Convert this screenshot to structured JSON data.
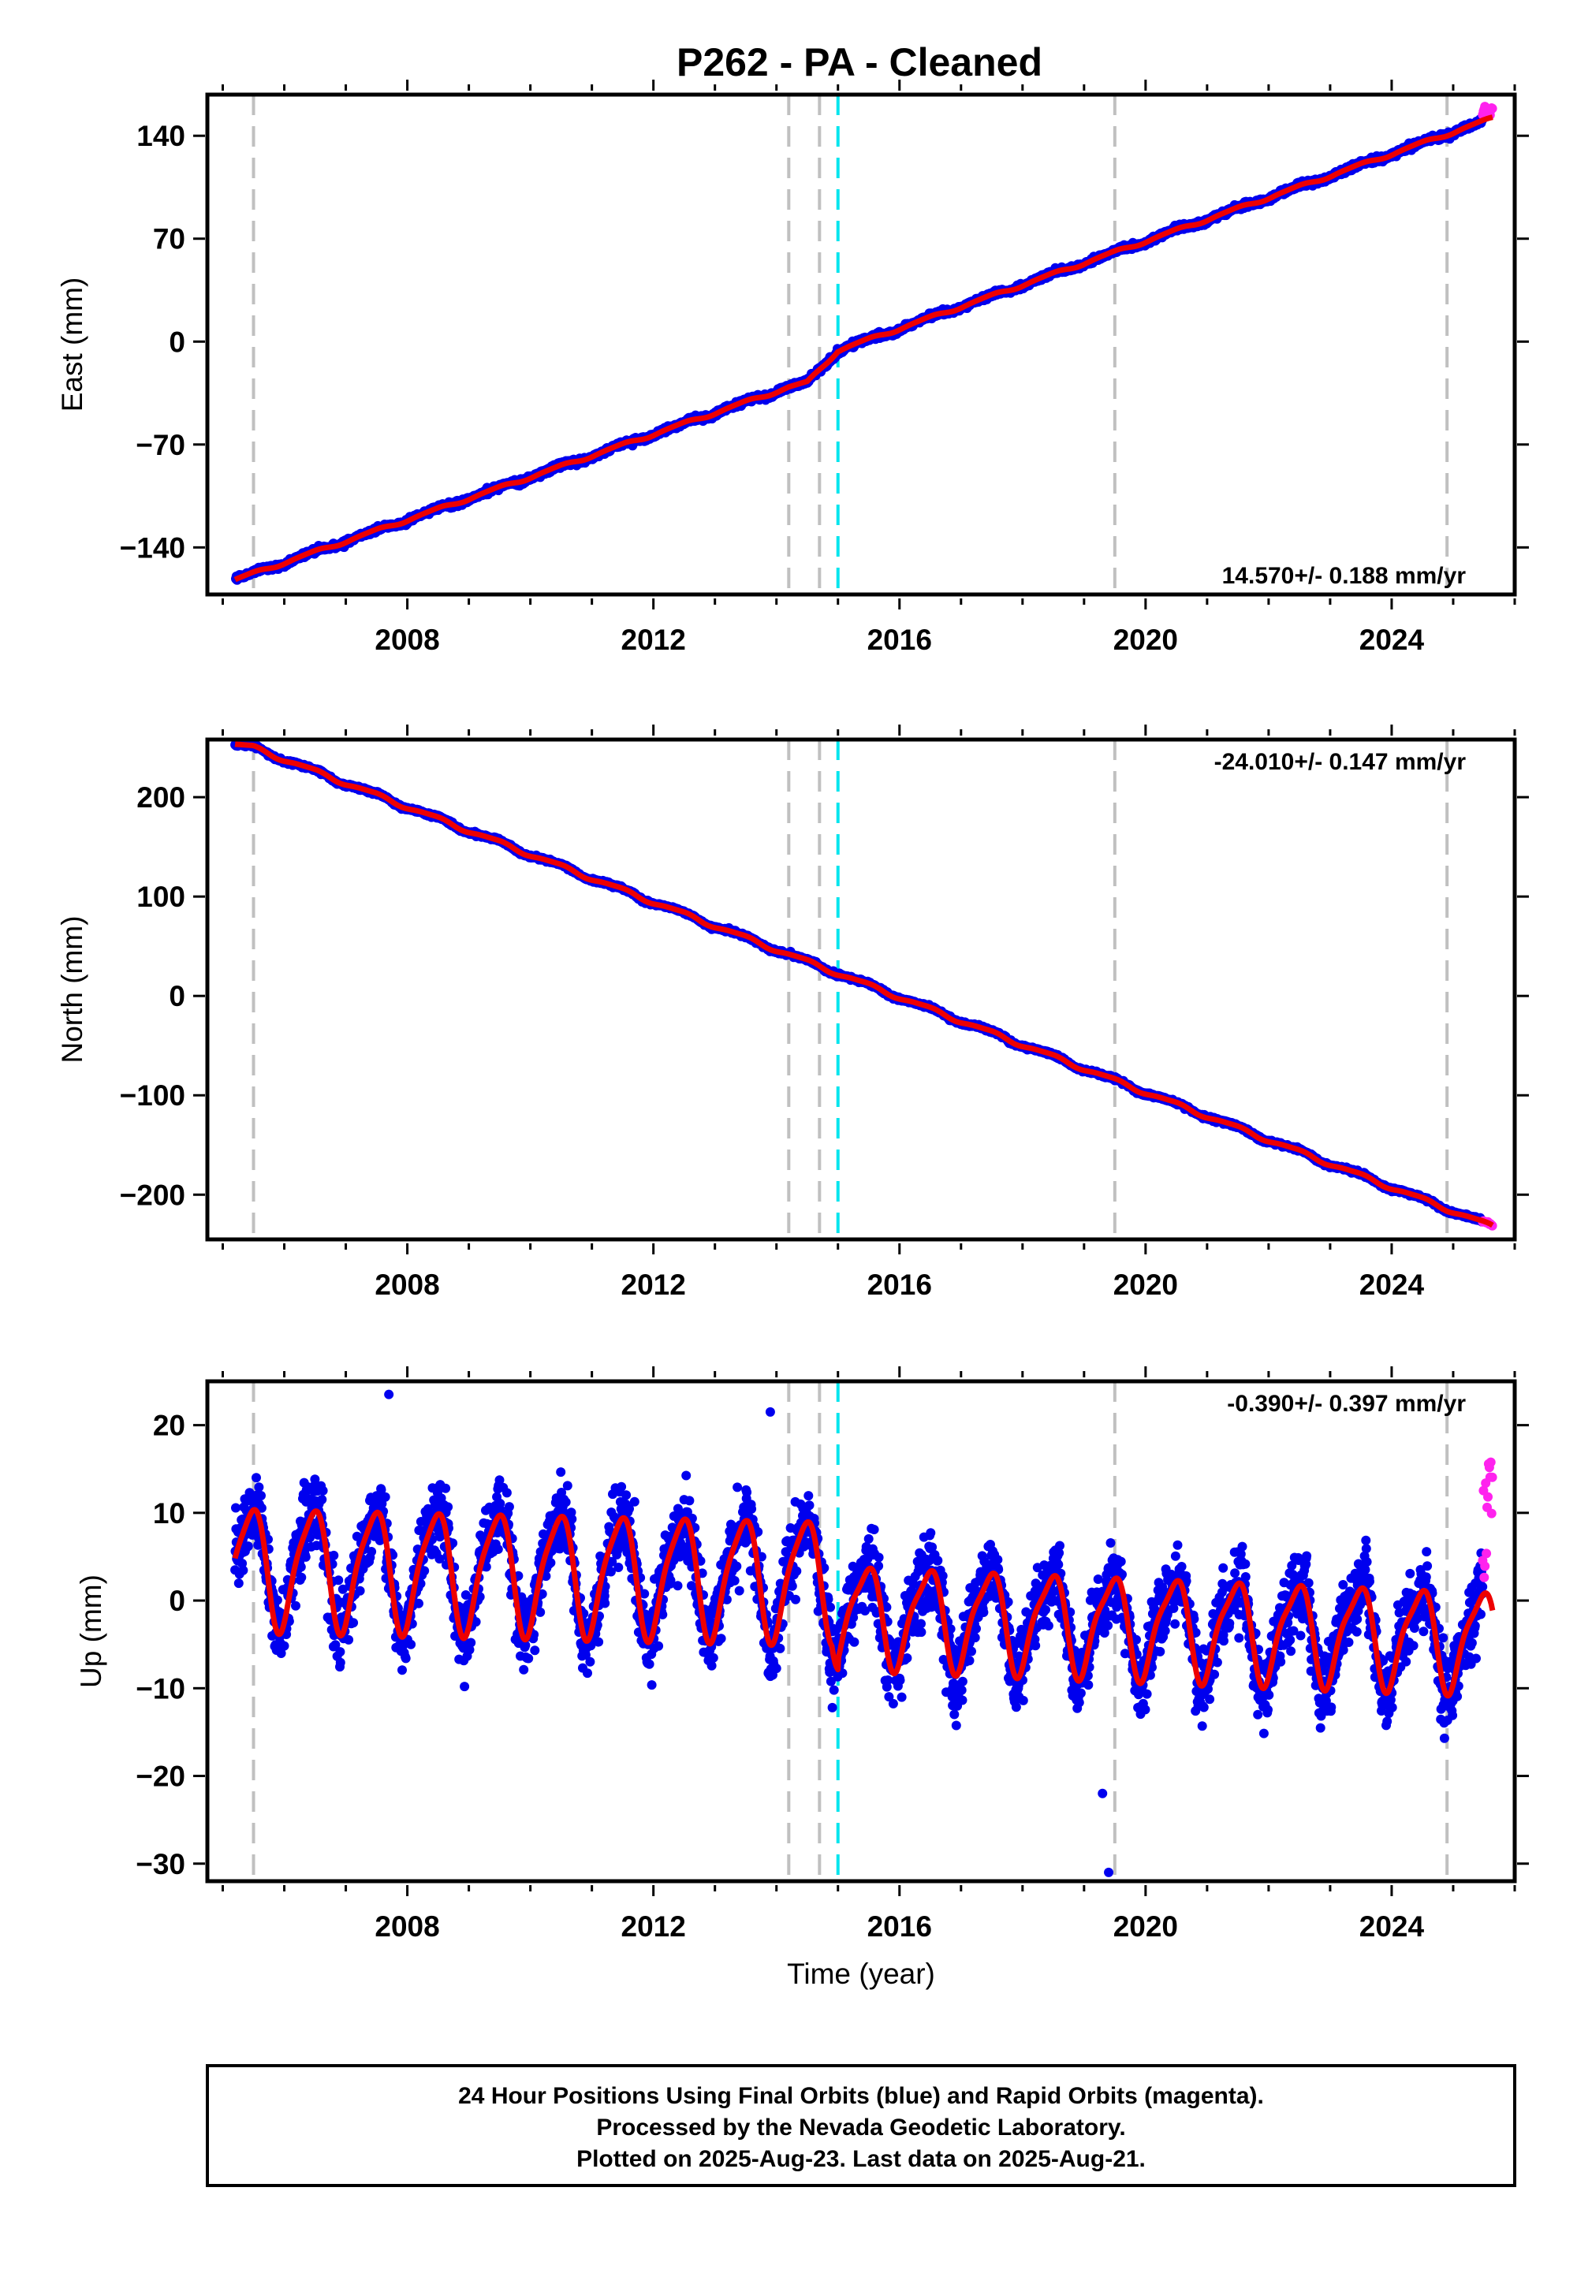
{
  "title": "P262  - PA - Cleaned",
  "colors": {
    "final_orbits": "#0000ee",
    "rapid_orbits": "#ff22ee",
    "model_fit": "#ee0000",
    "event_line": "#c0c0c0",
    "antenna_change_line": "#00e5ee"
  },
  "event_lines_years": [
    2005.5,
    2014.2,
    2014.7,
    2019.5,
    2024.9
  ],
  "antenna_change_year": 2015.0,
  "footer": {
    "line1": "24 Hour Positions Using Final Orbits (blue) and Rapid Orbits (magenta).",
    "line2": "Processed by the Nevada Geodetic Laboratory.",
    "line3": "Plotted on 2025-Aug-23. Last data on 2025-Aug-21."
  },
  "chart_data": [
    {
      "type": "scatter",
      "name": "east",
      "ylabel": "East (mm)",
      "xlabel": "",
      "xlim": [
        2004.75,
        2026.0
      ],
      "ylim": [
        -172,
        168
      ],
      "xticks": [
        2008,
        2012,
        2016,
        2020,
        2024
      ],
      "xtick_labels": [
        "2008",
        "2012",
        "2016",
        "2020",
        "2024"
      ],
      "yticks": [
        -140,
        -70,
        0,
        70,
        140
      ],
      "ytick_labels": [
        "−140",
        "−70",
        "0",
        "70",
        "140"
      ],
      "rate_label": "14.570+/- 0.188 mm/yr",
      "rate_position": "bottom-right",
      "data_start": 2005.2,
      "data_end": 2025.64,
      "rapid_start": 2025.48,
      "trend": {
        "x": [
          2005.2,
          2014.2,
          2014.5,
          2015.0,
          2025.64
        ],
        "y": [
          -162,
          -31,
          -28,
          -6,
          152
        ]
      },
      "seasonal_amplitude_mm": 1.0,
      "scatter_mm": 1.6
    },
    {
      "type": "scatter",
      "name": "north",
      "ylabel": "North (mm)",
      "xlabel": "",
      "xlim": [
        2004.75,
        2026.0
      ],
      "ylim": [
        -245,
        258
      ],
      "xticks": [
        2008,
        2012,
        2016,
        2020,
        2024
      ],
      "xtick_labels": [
        "2008",
        "2012",
        "2016",
        "2020",
        "2024"
      ],
      "yticks": [
        -200,
        -100,
        0,
        100,
        200
      ],
      "ytick_labels": [
        "−200",
        "−100",
        "0",
        "100",
        "200"
      ],
      "rate_label": "-24.010+/- 0.147 mm/yr",
      "rate_position": "top-right",
      "data_start": 2005.2,
      "data_end": 2025.64,
      "rapid_start": 2025.48,
      "trend": {
        "x": [
          2005.2,
          2005.5,
          2025.64
        ],
        "y": [
          253,
          250,
          -232
        ]
      },
      "seasonal_amplitude_mm": 2.0,
      "scatter_mm": 1.5
    },
    {
      "type": "scatter",
      "name": "up",
      "ylabel": "Up (mm)",
      "xlabel": "Time (year)",
      "xlim": [
        2004.75,
        2026.0
      ],
      "ylim": [
        -32,
        25
      ],
      "xticks": [
        2008,
        2012,
        2016,
        2020,
        2024
      ],
      "xtick_labels": [
        "2008",
        "2012",
        "2016",
        "2020",
        "2024"
      ],
      "yticks": [
        -30,
        -20,
        -10,
        0,
        10,
        20
      ],
      "ytick_labels": [
        "−30",
        "−20",
        "−10",
        "0",
        "10",
        "20"
      ],
      "rate_label": "-0.390+/- 0.397 mm/yr",
      "rate_position": "top-right",
      "data_start": 2005.2,
      "data_end": 2025.64,
      "rapid_start": 2025.48,
      "trend": {
        "x": [
          2005.2,
          2014.9,
          2015.0,
          2025.64
        ],
        "y": [
          4,
          2.5,
          -1.5,
          -4.5
        ]
      },
      "seasonal_amplitude_mm": 5.5,
      "scatter_mm": 3.6,
      "outliers": [
        [
          2007.7,
          23.5
        ],
        [
          2013.9,
          21.5
        ],
        [
          2019.4,
          -31
        ],
        [
          2019.3,
          -22
        ]
      ]
    }
  ]
}
